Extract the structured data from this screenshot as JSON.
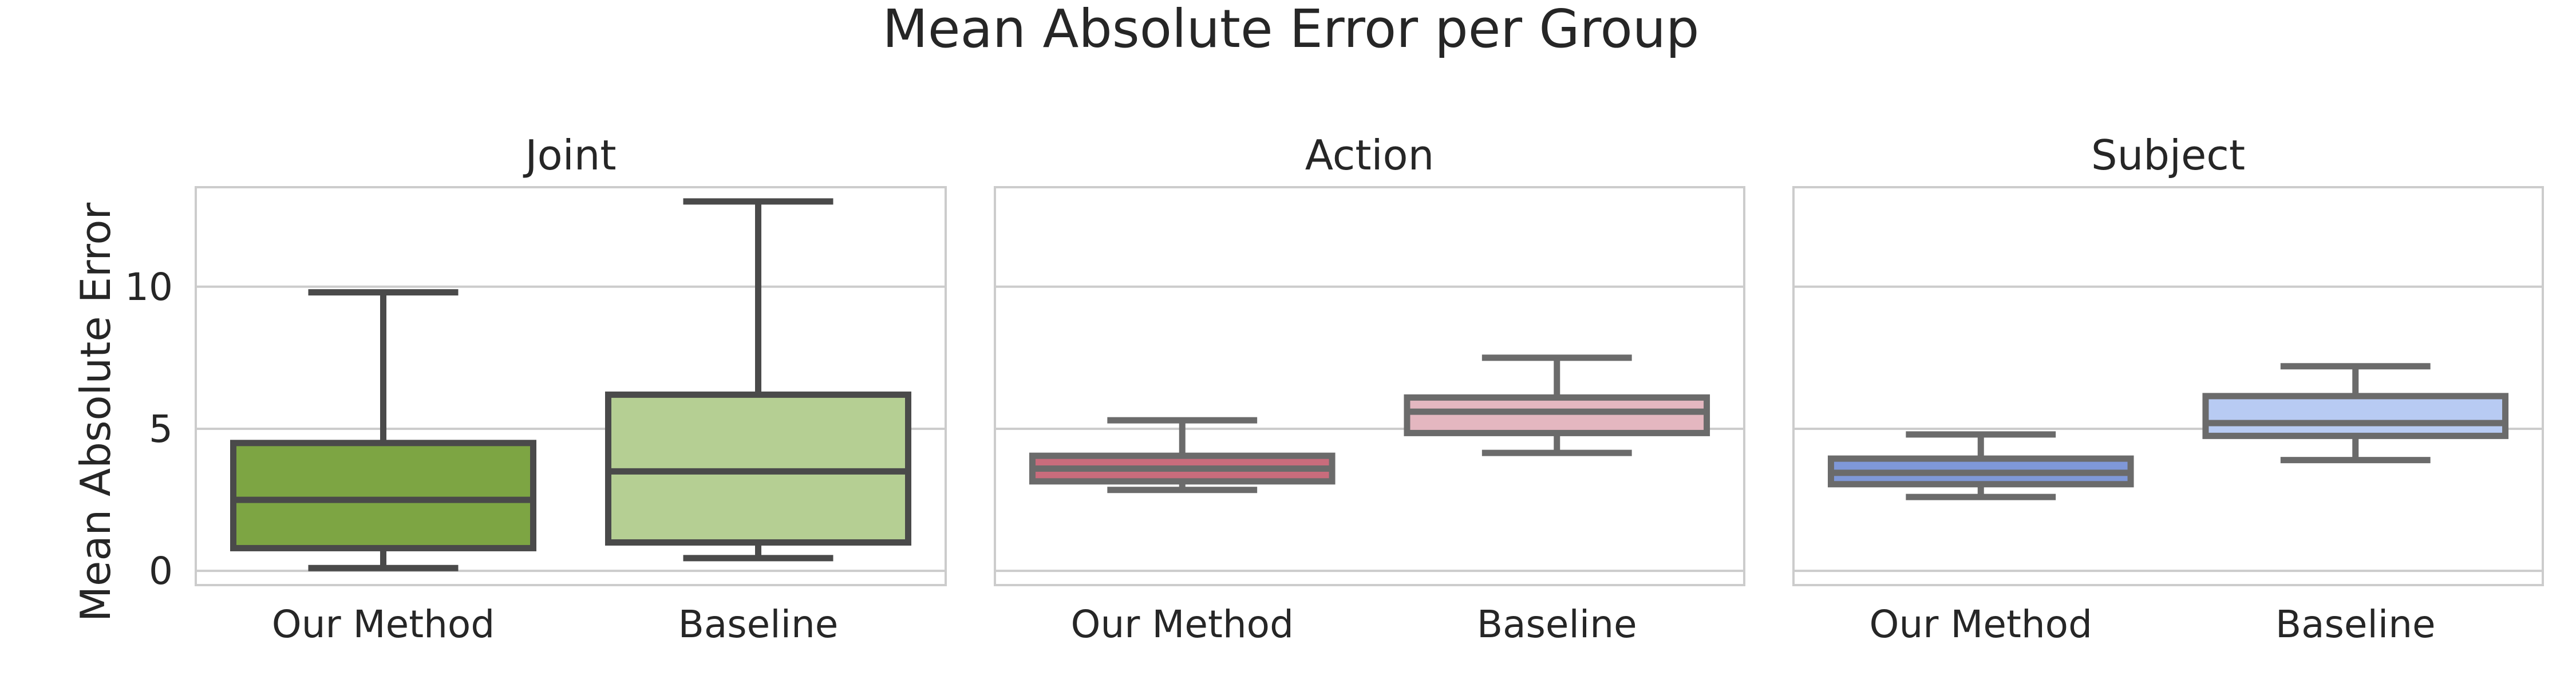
{
  "chart_data": {
    "type": "boxplot",
    "title": "Mean Absolute Error per Group",
    "ylabel": "Mean Absolute Error",
    "ylim": [
      -0.5,
      13.5
    ],
    "yticks": [
      "0",
      "5",
      "10"
    ],
    "grid": "horizontal",
    "panels": [
      {
        "title": "Joint",
        "categories": [
          "Our Method",
          "Baseline"
        ],
        "boxes": [
          {
            "category": "Our Method",
            "whislo": 0.1,
            "q1": 0.8,
            "med": 2.5,
            "q3": 4.5,
            "whishi": 9.8,
            "color": "#7da543"
          },
          {
            "category": "Baseline",
            "whislo": 0.45,
            "q1": 1.0,
            "med": 3.5,
            "q3": 6.2,
            "whishi": 13.0,
            "color": "#b5cf93"
          }
        ],
        "edge_color": "#4a4a4a"
      },
      {
        "title": "Action",
        "categories": [
          "Our Method",
          "Baseline"
        ],
        "boxes": [
          {
            "category": "Our Method",
            "whislo": 2.85,
            "q1": 3.15,
            "med": 3.6,
            "q3": 4.05,
            "whishi": 5.3,
            "color": "#c96c7c"
          },
          {
            "category": "Baseline",
            "whislo": 4.15,
            "q1": 4.85,
            "med": 5.6,
            "q3": 6.1,
            "whishi": 7.5,
            "color": "#e4b7c0"
          }
        ],
        "edge_color": "#6b6b6b"
      },
      {
        "title": "Subject",
        "categories": [
          "Our Method",
          "Baseline"
        ],
        "boxes": [
          {
            "category": "Our Method",
            "whislo": 2.6,
            "q1": 3.05,
            "med": 3.45,
            "q3": 3.95,
            "whishi": 4.8,
            "color": "#7f98d8"
          },
          {
            "category": "Baseline",
            "whislo": 3.9,
            "q1": 4.75,
            "med": 5.2,
            "q3": 6.15,
            "whishi": 7.2,
            "color": "#b8cbf3"
          }
        ],
        "edge_color": "#6b6b6b"
      }
    ]
  }
}
